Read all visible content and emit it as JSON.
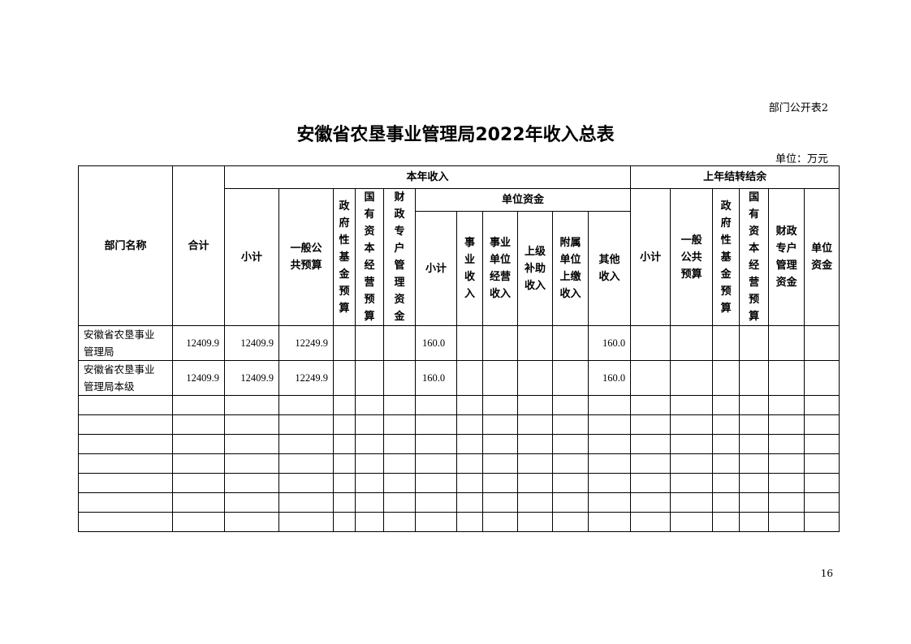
{
  "doc_tag": "部门公开表2",
  "title": "安徽省农垦事业管理局2022年收入总表",
  "unit": "单位：万元",
  "page_number": "16",
  "headers": {
    "dept_name": "部门名称",
    "total": "合计",
    "current_year": "本年收入",
    "prior_year": "上年结转结余",
    "cy_subtotal": "小计",
    "cy_general": "一般公\n共预算",
    "cy_gov_fund": "政\n府\n性\n基\n金\n预\n算",
    "cy_state_capital": "国\n有\n资\n本\n经\n营\n预\n算",
    "cy_fiscal_special": "财\n政\n专\n户\n管\n理\n资\n金",
    "unit_funds": "单位资金",
    "uf_subtotal": "小计",
    "uf_business": "事\n业\n收\n入",
    "uf_operating": "事业\n单位\n经营\n收入",
    "uf_superior": "上级\n补助\n收入",
    "uf_affiliated": "附属\n单位\n上缴\n收入",
    "uf_other": "其他\n收入",
    "py_subtotal": "小计",
    "py_general": "一般\n公共\n预算",
    "py_gov_fund": "政\n府\n性\n基\n金\n预\n算",
    "py_state_capital": "国\n有\n资\n本\n经\n营\n预\n算",
    "py_fiscal_special": "财政\n专户\n管理\n资金",
    "py_unit_funds": "单位\n资金"
  },
  "rows": [
    {
      "name": "安徽省农垦事业\n管理局",
      "total": "12409.9",
      "cy_subtotal": "12409.9",
      "cy_general": "12249.9",
      "uf_subtotal": "160.0",
      "uf_other": "160.0"
    },
    {
      "name": "安徽省农垦事业\n管理局本级",
      "total": "12409.9",
      "cy_subtotal": "12409.9",
      "cy_general": "12249.9",
      "uf_subtotal": "160.0",
      "uf_other": "160.0"
    }
  ]
}
